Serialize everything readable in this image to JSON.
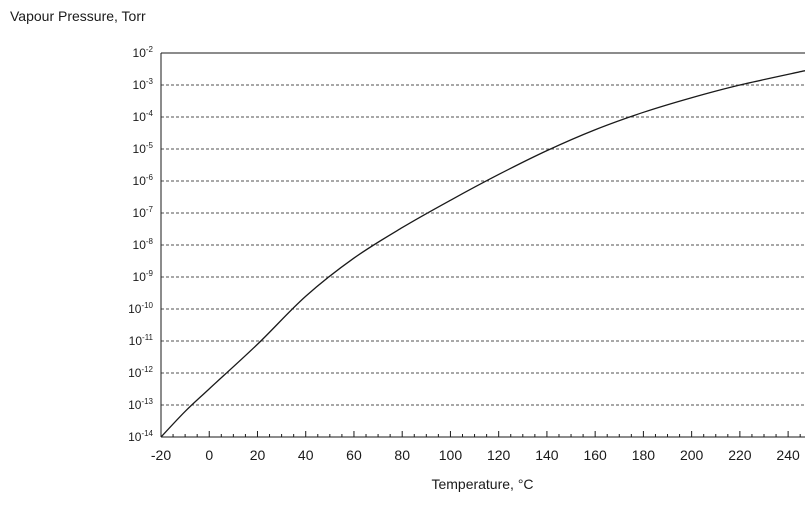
{
  "chart_data": {
    "type": "line",
    "title": "",
    "ylabel": "Vapour Pressure, Torr",
    "xlabel": "Temperature, °C",
    "xlim": [
      -20,
      247
    ],
    "ylim_log10": [
      -14,
      -2
    ],
    "yscale": "log",
    "grid": "horizontal dashed",
    "x_ticks": [
      -20,
      0,
      20,
      40,
      60,
      80,
      100,
      120,
      140,
      160,
      180,
      200,
      220,
      240
    ],
    "y_ticks": [
      {
        "base": "10",
        "exp": "-2"
      },
      {
        "base": "10",
        "exp": "-3"
      },
      {
        "base": "10",
        "exp": "-4"
      },
      {
        "base": "10",
        "exp": "-5"
      },
      {
        "base": "10",
        "exp": "-6"
      },
      {
        "base": "10",
        "exp": "-7"
      },
      {
        "base": "10",
        "exp": "-8"
      },
      {
        "base": "10",
        "exp": "-9"
      },
      {
        "base": "10",
        "exp": "-10"
      },
      {
        "base": "10",
        "exp": "-11"
      },
      {
        "base": "10",
        "exp": "-12"
      },
      {
        "base": "10",
        "exp": "-13"
      },
      {
        "base": "10",
        "exp": "-14"
      }
    ],
    "series": [
      {
        "points": [
          {
            "x": -20,
            "y": 1e-14
          },
          {
            "x": -10,
            "y": 6.3e-14
          },
          {
            "x": 0,
            "y": 3.2e-13
          },
          {
            "x": 20,
            "y": 7.9e-12
          },
          {
            "x": 40,
            "y": 2.5e-10
          },
          {
            "x": 60,
            "y": 3.9e-09
          },
          {
            "x": 80,
            "y": 3.5e-08
          },
          {
            "x": 100,
            "y": 2.5e-07
          },
          {
            "x": 120,
            "y": 1.6e-06
          },
          {
            "x": 140,
            "y": 8.9e-06
          },
          {
            "x": 160,
            "y": 4e-05
          },
          {
            "x": 180,
            "y": 0.00014
          },
          {
            "x": 200,
            "y": 0.0004
          },
          {
            "x": 220,
            "y": 0.001
          },
          {
            "x": 247,
            "y": 0.0028
          }
        ]
      }
    ]
  },
  "colors": {
    "line": "#1a1a1a",
    "grid": "#1a1a1a",
    "background": "#ffffff"
  }
}
